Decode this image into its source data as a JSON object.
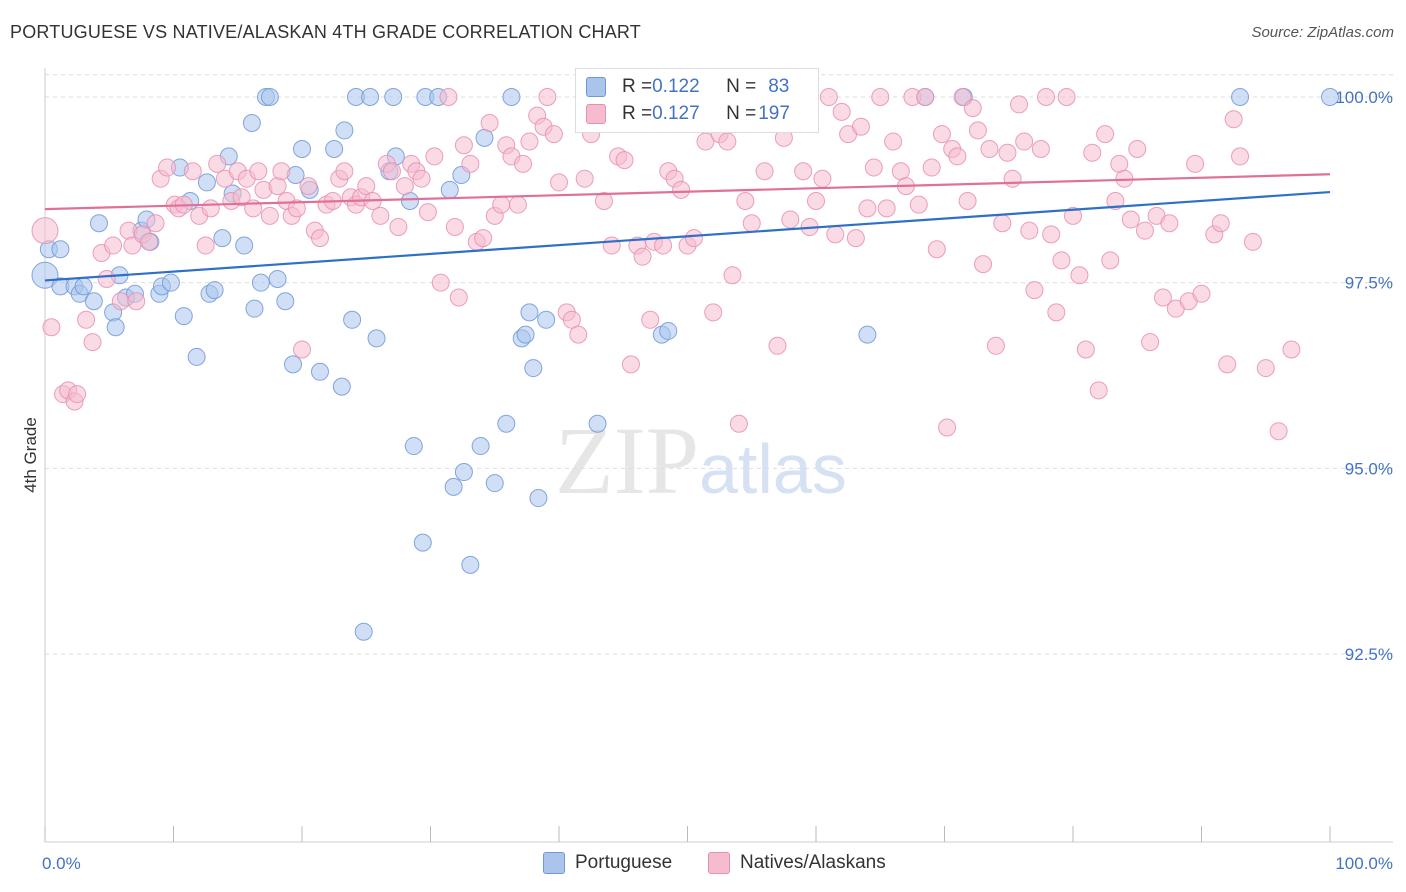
{
  "title": "PORTUGUESE VS NATIVE/ALASKAN 4TH GRADE CORRELATION CHART",
  "source": "Source: ZipAtlas.com",
  "watermark": {
    "zip": "ZIP",
    "atlas": "atlas"
  },
  "legend": {
    "rows": [
      {
        "r_label": "R = ",
        "r_value": "0.122",
        "n_label": "N = ",
        "n_value": "83"
      },
      {
        "r_label": "R = ",
        "r_value": "0.127",
        "n_label": "N = ",
        "n_value": "197"
      }
    ]
  },
  "bottom_legend": {
    "portuguese": "Portuguese",
    "natives": "Natives/Alaskans"
  },
  "colors": {
    "portuguese_fill": "#aac4ec",
    "portuguese_stroke": "#6e98d8",
    "portuguese_line": "#2e6fc9",
    "natives_fill": "#f5bcd0",
    "natives_stroke": "#e78faf",
    "natives_line": "#e0709a",
    "tick_text": "#4472c4",
    "grid": "#dddddd"
  },
  "chart_data": {
    "type": "scatter",
    "title": "PORTUGUESE VS NATIVE/ALASKAN 4TH GRADE CORRELATION CHART",
    "xlabel": "",
    "ylabel": "4th Grade",
    "xlim": [
      0,
      100
    ],
    "ylim": [
      90.0,
      100.3
    ],
    "x_tick_labels": [
      {
        "value": 0,
        "label": "0.0%"
      },
      {
        "value": 100,
        "label": "100.0%"
      }
    ],
    "y_tick_labels": [
      {
        "value": 100.0,
        "label": "100.0%"
      },
      {
        "value": 97.5,
        "label": "97.5%"
      },
      {
        "value": 95.0,
        "label": "95.0%"
      },
      {
        "value": 92.5,
        "label": "92.5%"
      }
    ],
    "series": [
      {
        "name": "Portuguese",
        "R": 0.122,
        "N": 83,
        "trend": {
          "x": [
            0,
            100
          ],
          "y": [
            97.53,
            98.72
          ]
        },
        "points": [
          [
            0,
            97.6
          ],
          [
            0.3,
            97.95
          ],
          [
            1.2,
            97.95
          ],
          [
            1.2,
            97.45
          ],
          [
            2.3,
            97.45
          ],
          [
            2.7,
            97.35
          ],
          [
            3.0,
            97.45
          ],
          [
            3.8,
            97.25
          ],
          [
            4.2,
            98.3
          ],
          [
            5.3,
            97.1
          ],
          [
            5.5,
            96.9
          ],
          [
            5.8,
            97.6
          ],
          [
            6.3,
            97.3
          ],
          [
            7.0,
            97.35
          ],
          [
            7.5,
            98.2
          ],
          [
            7.9,
            98.35
          ],
          [
            8.2,
            98.05
          ],
          [
            8.9,
            97.35
          ],
          [
            9.1,
            97.45
          ],
          [
            9.8,
            97.5
          ],
          [
            10.5,
            99.05
          ],
          [
            10.8,
            97.05
          ],
          [
            11.3,
            98.6
          ],
          [
            11.8,
            96.5
          ],
          [
            12.6,
            98.85
          ],
          [
            12.8,
            97.35
          ],
          [
            13.2,
            97.4
          ],
          [
            13.8,
            98.1
          ],
          [
            14.3,
            99.2
          ],
          [
            14.6,
            98.7
          ],
          [
            15.5,
            98.0
          ],
          [
            16.1,
            99.65
          ],
          [
            16.3,
            97.15
          ],
          [
            16.8,
            97.5
          ],
          [
            17.2,
            100.0
          ],
          [
            17.5,
            100.0
          ],
          [
            18.1,
            97.55
          ],
          [
            18.7,
            97.25
          ],
          [
            19.3,
            96.4
          ],
          [
            19.5,
            98.95
          ],
          [
            20.0,
            99.3
          ],
          [
            20.6,
            98.75
          ],
          [
            21.4,
            96.3
          ],
          [
            22.5,
            99.3
          ],
          [
            23.1,
            96.1
          ],
          [
            23.3,
            99.55
          ],
          [
            23.9,
            97.0
          ],
          [
            24.2,
            100.0
          ],
          [
            24.8,
            92.8
          ],
          [
            25.3,
            100.0
          ],
          [
            25.8,
            96.75
          ],
          [
            26.8,
            99.0
          ],
          [
            27.1,
            100.0
          ],
          [
            27.3,
            99.2
          ],
          [
            28.4,
            98.6
          ],
          [
            28.7,
            95.3
          ],
          [
            29.4,
            94.0
          ],
          [
            29.6,
            100.0
          ],
          [
            30.6,
            100.0
          ],
          [
            31.5,
            98.75
          ],
          [
            31.8,
            94.75
          ],
          [
            32.4,
            98.95
          ],
          [
            32.6,
            94.95
          ],
          [
            33.1,
            93.7
          ],
          [
            33.9,
            95.3
          ],
          [
            34.2,
            99.45
          ],
          [
            35.0,
            94.8
          ],
          [
            35.9,
            95.6
          ],
          [
            36.3,
            100.0
          ],
          [
            37.1,
            96.75
          ],
          [
            37.4,
            96.8
          ],
          [
            37.7,
            97.1
          ],
          [
            38.0,
            96.35
          ],
          [
            38.4,
            94.6
          ],
          [
            39.0,
            97.0
          ],
          [
            43.0,
            95.6
          ],
          [
            48.0,
            96.8
          ],
          [
            48.5,
            96.85
          ],
          [
            64.0,
            96.8
          ],
          [
            68.5,
            100.0
          ],
          [
            71.5,
            100.0
          ],
          [
            93.0,
            100.0
          ],
          [
            100.0,
            100.0
          ]
        ]
      },
      {
        "name": "Natives/Alaskans",
        "R": 0.127,
        "N": 197,
        "trend": {
          "x": [
            0,
            100
          ],
          "y": [
            98.49,
            98.96
          ]
        },
        "points": [
          [
            0,
            98.2
          ],
          [
            0.5,
            96.9
          ],
          [
            1.4,
            96.0
          ],
          [
            1.8,
            96.05
          ],
          [
            2.3,
            95.9
          ],
          [
            2.5,
            96.0
          ],
          [
            3.2,
            97.0
          ],
          [
            3.7,
            96.7
          ],
          [
            4.4,
            97.9
          ],
          [
            4.8,
            97.55
          ],
          [
            5.3,
            98.0
          ],
          [
            5.9,
            97.25
          ],
          [
            6.5,
            98.2
          ],
          [
            6.8,
            98.0
          ],
          [
            7.1,
            97.25
          ],
          [
            7.6,
            98.15
          ],
          [
            8.1,
            98.05
          ],
          [
            8.6,
            98.3
          ],
          [
            9.0,
            98.9
          ],
          [
            9.5,
            99.05
          ],
          [
            10.1,
            98.55
          ],
          [
            10.4,
            98.5
          ],
          [
            10.8,
            98.55
          ],
          [
            11.5,
            99.0
          ],
          [
            12.0,
            98.4
          ],
          [
            12.5,
            98.0
          ],
          [
            12.9,
            98.5
          ],
          [
            13.4,
            99.1
          ],
          [
            14.0,
            98.9
          ],
          [
            14.5,
            98.6
          ],
          [
            15.0,
            99.0
          ],
          [
            15.3,
            98.65
          ],
          [
            15.7,
            98.9
          ],
          [
            16.2,
            98.5
          ],
          [
            16.6,
            99.0
          ],
          [
            17.0,
            98.75
          ],
          [
            17.5,
            98.4
          ],
          [
            18.1,
            98.8
          ],
          [
            18.4,
            99.0
          ],
          [
            18.8,
            98.6
          ],
          [
            19.2,
            98.4
          ],
          [
            19.6,
            98.5
          ],
          [
            20.0,
            96.6
          ],
          [
            20.5,
            98.8
          ],
          [
            21.0,
            98.2
          ],
          [
            21.4,
            98.1
          ],
          [
            21.9,
            98.55
          ],
          [
            22.4,
            98.6
          ],
          [
            22.9,
            98.9
          ],
          [
            23.3,
            99.0
          ],
          [
            23.8,
            98.65
          ],
          [
            24.2,
            98.55
          ],
          [
            24.6,
            98.65
          ],
          [
            25.0,
            98.8
          ],
          [
            25.5,
            98.6
          ],
          [
            26.1,
            98.4
          ],
          [
            26.6,
            99.1
          ],
          [
            27.0,
            99.0
          ],
          [
            27.5,
            98.25
          ],
          [
            28.0,
            98.8
          ],
          [
            28.5,
            99.1
          ],
          [
            28.9,
            99.0
          ],
          [
            29.3,
            98.9
          ],
          [
            29.8,
            98.45
          ],
          [
            30.3,
            99.2
          ],
          [
            30.8,
            97.5
          ],
          [
            31.4,
            100.0
          ],
          [
            31.9,
            98.25
          ],
          [
            32.2,
            97.3
          ],
          [
            32.6,
            99.35
          ],
          [
            33.1,
            99.1
          ],
          [
            33.6,
            98.05
          ],
          [
            34.1,
            98.1
          ],
          [
            34.6,
            99.65
          ],
          [
            35.0,
            98.4
          ],
          [
            35.5,
            98.55
          ],
          [
            35.9,
            99.35
          ],
          [
            36.3,
            99.2
          ],
          [
            36.8,
            98.55
          ],
          [
            37.2,
            99.1
          ],
          [
            37.7,
            99.4
          ],
          [
            38.3,
            99.75
          ],
          [
            38.8,
            99.6
          ],
          [
            39.1,
            100.0
          ],
          [
            39.6,
            99.5
          ],
          [
            40.0,
            98.85
          ],
          [
            40.6,
            97.1
          ],
          [
            41.0,
            97.0
          ],
          [
            41.5,
            96.8
          ],
          [
            42.0,
            98.9
          ],
          [
            42.5,
            99.5
          ],
          [
            43.1,
            100.0
          ],
          [
            43.5,
            98.6
          ],
          [
            44.1,
            98.0
          ],
          [
            44.6,
            99.2
          ],
          [
            45.1,
            99.15
          ],
          [
            45.6,
            96.4
          ],
          [
            46.1,
            98.0
          ],
          [
            46.5,
            97.85
          ],
          [
            47.1,
            97.0
          ],
          [
            47.4,
            98.05
          ],
          [
            48.1,
            98.0
          ],
          [
            48.5,
            99.0
          ],
          [
            49.0,
            98.9
          ],
          [
            49.5,
            98.75
          ],
          [
            50.0,
            98.0
          ],
          [
            50.5,
            98.1
          ],
          [
            51.0,
            99.8
          ],
          [
            51.4,
            99.4
          ],
          [
            52.0,
            97.1
          ],
          [
            52.5,
            99.5
          ],
          [
            53.1,
            99.4
          ],
          [
            53.5,
            97.6
          ],
          [
            54.0,
            95.6
          ],
          [
            54.5,
            98.6
          ],
          [
            55.0,
            98.3
          ],
          [
            55.5,
            99.65
          ],
          [
            56.0,
            99.0
          ],
          [
            56.5,
            100.0
          ],
          [
            57.0,
            96.65
          ],
          [
            57.5,
            99.45
          ],
          [
            58.0,
            98.35
          ],
          [
            58.5,
            100.0
          ],
          [
            59.0,
            99.0
          ],
          [
            59.5,
            98.25
          ],
          [
            60.0,
            98.6
          ],
          [
            60.5,
            98.9
          ],
          [
            61.0,
            100.0
          ],
          [
            61.5,
            98.15
          ],
          [
            62.0,
            99.8
          ],
          [
            62.5,
            99.5
          ],
          [
            63.1,
            98.1
          ],
          [
            63.5,
            99.6
          ],
          [
            64.0,
            98.5
          ],
          [
            64.5,
            99.05
          ],
          [
            65.0,
            100.0
          ],
          [
            65.5,
            98.5
          ],
          [
            66.0,
            99.4
          ],
          [
            66.6,
            99.0
          ],
          [
            67.0,
            98.8
          ],
          [
            67.5,
            100.0
          ],
          [
            68.0,
            98.55
          ],
          [
            68.5,
            100.0
          ],
          [
            69.0,
            99.05
          ],
          [
            69.4,
            97.95
          ],
          [
            69.8,
            99.5
          ],
          [
            70.2,
            95.55
          ],
          [
            70.6,
            99.3
          ],
          [
            71.0,
            99.2
          ],
          [
            71.4,
            100.0
          ],
          [
            71.8,
            98.6
          ],
          [
            72.2,
            99.85
          ],
          [
            72.6,
            99.55
          ],
          [
            73.0,
            97.75
          ],
          [
            73.5,
            99.3
          ],
          [
            74.0,
            96.65
          ],
          [
            74.5,
            98.3
          ],
          [
            74.9,
            99.25
          ],
          [
            75.3,
            98.9
          ],
          [
            75.8,
            99.9
          ],
          [
            76.2,
            99.4
          ],
          [
            76.6,
            98.2
          ],
          [
            77.0,
            97.4
          ],
          [
            77.5,
            99.3
          ],
          [
            77.9,
            100.0
          ],
          [
            78.3,
            98.15
          ],
          [
            78.7,
            97.1
          ],
          [
            79.1,
            97.8
          ],
          [
            79.5,
            100.0
          ],
          [
            80.0,
            98.4
          ],
          [
            80.5,
            97.6
          ],
          [
            81.0,
            96.6
          ],
          [
            81.5,
            99.25
          ],
          [
            82.0,
            96.05
          ],
          [
            82.5,
            99.5
          ],
          [
            82.9,
            97.8
          ],
          [
            83.3,
            98.6
          ],
          [
            83.6,
            99.1
          ],
          [
            84.0,
            98.9
          ],
          [
            84.5,
            98.35
          ],
          [
            85.0,
            99.3
          ],
          [
            85.6,
            98.2
          ],
          [
            86.0,
            96.7
          ],
          [
            86.5,
            98.4
          ],
          [
            87.0,
            97.3
          ],
          [
            87.5,
            98.3
          ],
          [
            88.0,
            97.15
          ],
          [
            89.0,
            97.25
          ],
          [
            89.5,
            99.1
          ],
          [
            90.0,
            97.35
          ],
          [
            91.0,
            98.15
          ],
          [
            91.5,
            98.3
          ],
          [
            92.0,
            96.4
          ],
          [
            92.5,
            99.7
          ],
          [
            93.0,
            99.2
          ],
          [
            94.0,
            98.05
          ],
          [
            95.0,
            96.35
          ],
          [
            96.0,
            95.5
          ],
          [
            97.0,
            96.6
          ]
        ]
      }
    ]
  }
}
